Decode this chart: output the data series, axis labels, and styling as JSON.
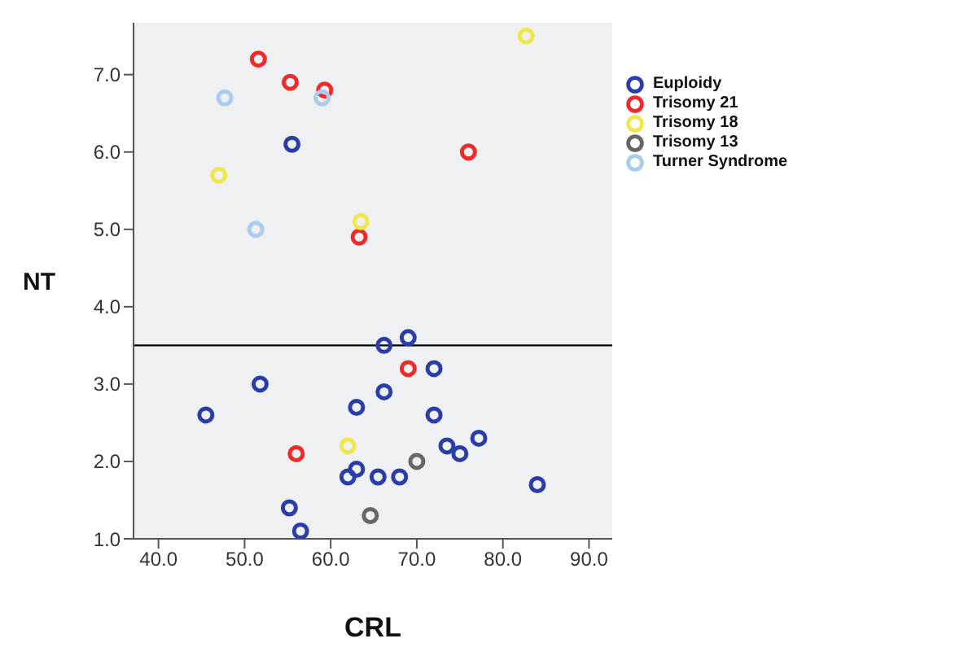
{
  "chart_data": {
    "type": "scatter",
    "xlabel": "CRL",
    "ylabel": "NT",
    "xlim": [
      37.1,
      92.7
    ],
    "ylim": [
      1.0,
      7.67
    ],
    "xticks": [
      {
        "value": 40,
        "label": "40.0"
      },
      {
        "value": 50,
        "label": "50.0"
      },
      {
        "value": 60,
        "label": "60.0"
      },
      {
        "value": 70,
        "label": "70.0"
      },
      {
        "value": 80,
        "label": "80.0"
      },
      {
        "value": 90,
        "label": "90.0"
      }
    ],
    "yticks": [
      {
        "value": 1,
        "label": "1.0"
      },
      {
        "value": 2,
        "label": "2.0"
      },
      {
        "value": 3,
        "label": "3.0"
      },
      {
        "value": 4,
        "label": "4.0"
      },
      {
        "value": 5,
        "label": "5.0"
      },
      {
        "value": 6,
        "label": "6.0"
      },
      {
        "value": 7,
        "label": "7.0"
      }
    ],
    "grid": false,
    "legend": "right",
    "marker": "circle",
    "ref_lines": [
      {
        "axis": "y",
        "value": 3.5,
        "color": "#000000"
      }
    ],
    "series": [
      {
        "name": "Euploidy",
        "color": "#2b3ea8",
        "x": [
          45.5,
          51.8,
          55.5,
          55.2,
          56.5,
          62,
          63,
          63,
          65.5,
          66.2,
          66.2,
          68,
          69,
          72,
          72,
          73.5,
          75,
          77.2,
          84
        ],
        "values": [
          2.6,
          3.0,
          6.1,
          1.4,
          1.1,
          1.8,
          1.9,
          2.7,
          1.8,
          2.9,
          3.5,
          1.8,
          3.6,
          3.2,
          2.6,
          2.2,
          2.1,
          2.3,
          1.7
        ]
      },
      {
        "name": "Trisomy 21",
        "color": "#ee2a2a",
        "x": [
          51.6,
          55.3,
          59.3,
          76,
          63.3,
          69,
          56
        ],
        "values": [
          7.2,
          6.9,
          6.8,
          6.0,
          4.9,
          3.2,
          2.1
        ]
      },
      {
        "name": "Trisomy 18",
        "color": "#f0e64a",
        "x": [
          82.7,
          47,
          63.5,
          62
        ],
        "values": [
          7.5,
          5.7,
          5.1,
          2.2
        ]
      },
      {
        "name": "Trisomy 13",
        "color": "#666666",
        "x": [
          64.6,
          70
        ],
        "values": [
          1.3,
          2.0
        ]
      },
      {
        "name": "Turner Syndrome",
        "color": "#a8cdef",
        "x": [
          47.7,
          59,
          51.3
        ],
        "values": [
          6.7,
          6.7,
          5.0
        ]
      }
    ]
  }
}
